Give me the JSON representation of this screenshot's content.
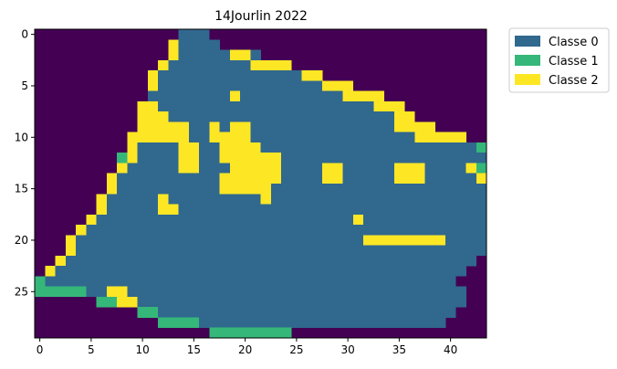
{
  "chart_data": {
    "type": "heatmap",
    "title": "14Jourlin 2022",
    "xlabel": "",
    "ylabel": "",
    "xlim": [
      -0.5,
      43.5
    ],
    "ylim": [
      29.5,
      -0.5
    ],
    "x_ticks": [
      0,
      5,
      10,
      15,
      20,
      25,
      30,
      35,
      40
    ],
    "y_ticks": [
      0,
      5,
      10,
      15,
      20,
      25
    ],
    "legend_position": "outside-top-right",
    "background_color": "#440154",
    "legend": [
      {
        "label": "Classe 0",
        "color": "#31688e"
      },
      {
        "label": "Classe 1",
        "color": "#35b779"
      },
      {
        "label": "Classe 2",
        "color": "#fde725"
      }
    ],
    "grid_legend": {
      ".": "background",
      "0": "Classe 0",
      "1": "Classe 1",
      "2": "Classe 2"
    },
    "grid": [
      "..............000...........................",
      ".............20000..........................",
      ".............200000220......................",
      "............2000000002222...................",
      "...........20000000000000022................",
      "...........20000000000000000222.............",
      "...........00000000200000000002222..........",
      "..........22000000000000000000000222........",
      "..........222000000000000000000000022.......",
      "..........22222002022000000000000002222.....",
      ".........222222002222000000000000000022222..",
      ".........20000220022220000000000000000000001",
      "........1200002200222222000000000000000000001",
      "........200000220002222200002200000222000021",
      ".......2000000000022222200002200000222000002",
      ".......20000000000222220000000000000000000002",
      "......200000200000000020000000000000000000001",
      "......200000220000000000000000000000000000002",
      ".....20000000000000000000000000200000000000002",
      "....20000000000000000000000000000000000000000",
      "...20000000000000000000000000000222222220000",
      "...20000000000000000000000000000000000000000",
      "..20000000000000000000000000000000000000000",
      ".20000000000000000000000000000000000000000",
      "10000000000000000000000000000000000000000",
      "111110022000000000000000000000000000000000",
      "......112200000000000000000000000000000000",
      "..........1100000000000000000000000000000.",
      "............1111000000000000000000000000..",
      ".................11111111....................."
    ]
  }
}
